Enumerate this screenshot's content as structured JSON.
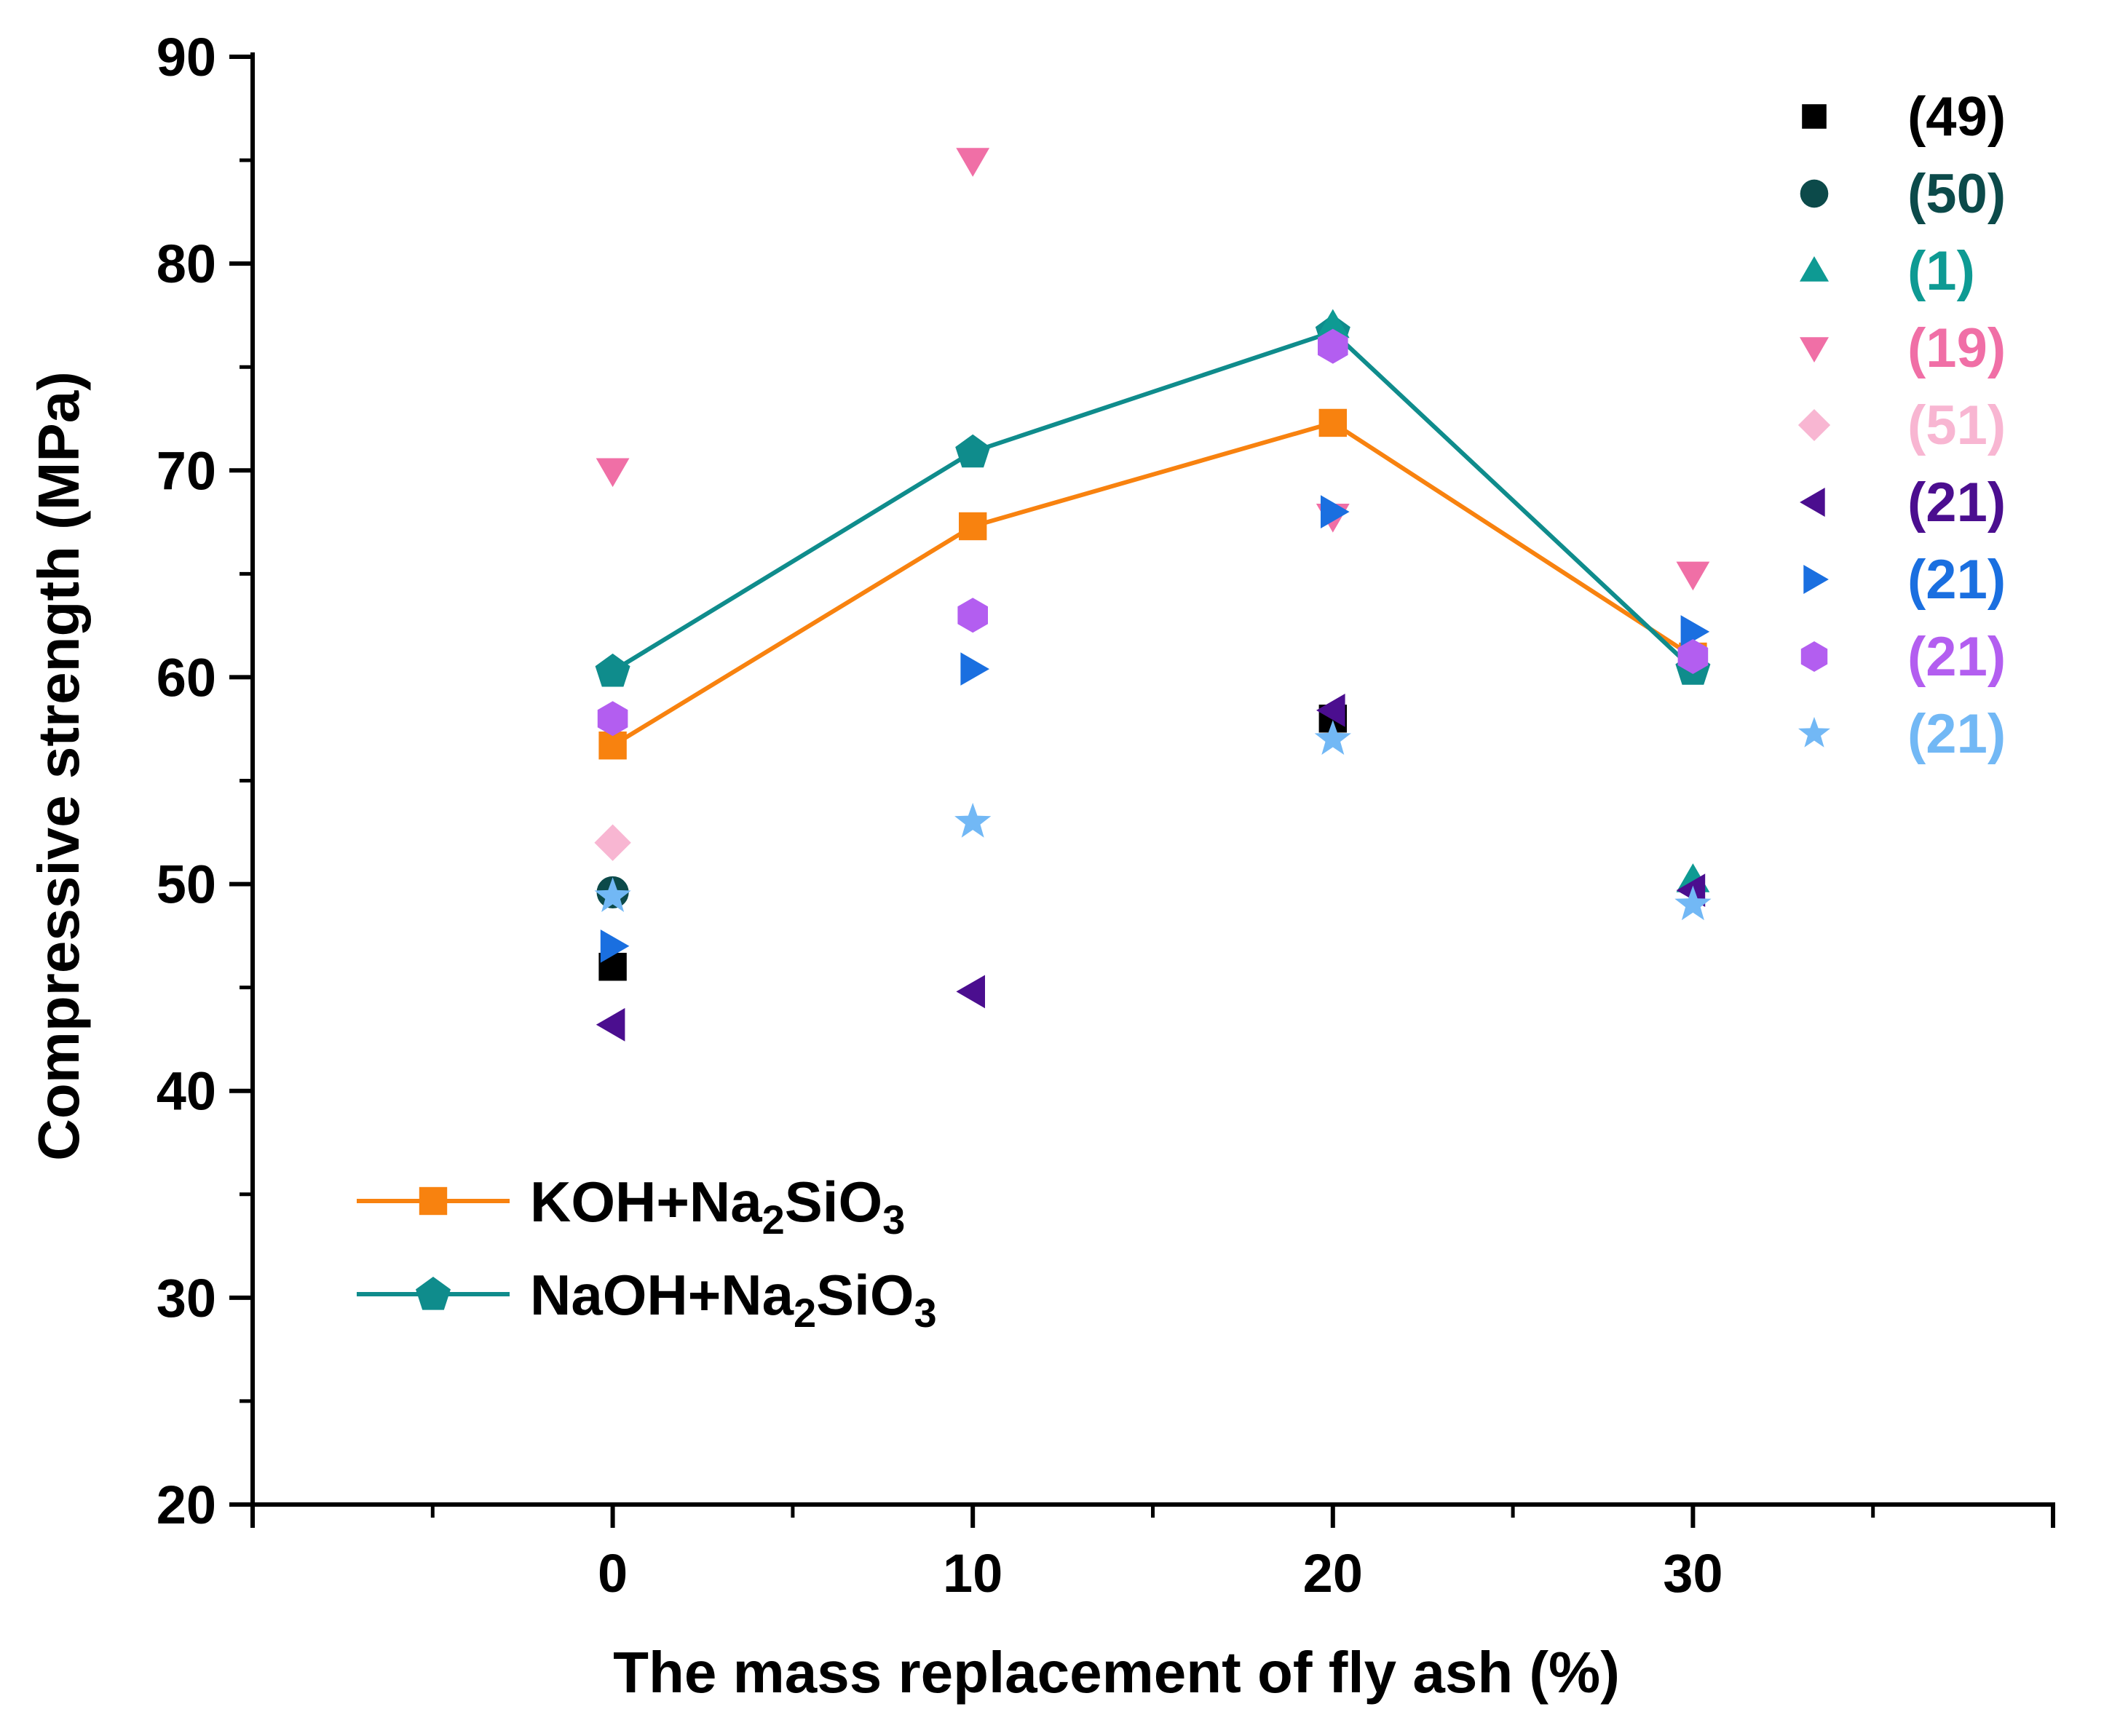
{
  "chart_data": {
    "type": "scatter",
    "xlabel": "The mass replacement of fly ash (%)",
    "ylabel": "Compressive strength (MPa)",
    "xlim": [
      -10,
      40
    ],
    "ylim": [
      20,
      90
    ],
    "xticks": [
      0,
      10,
      20,
      30
    ],
    "xtick_labels": [
      "0",
      "10",
      "20",
      "30"
    ],
    "yticks": [
      20,
      30,
      40,
      50,
      60,
      70,
      80,
      90
    ],
    "ytick_labels": [
      "20",
      "30",
      "40",
      "50",
      "60",
      "70",
      "80",
      "90"
    ],
    "grid": false,
    "scatter_series": [
      {
        "name": "(49)",
        "marker": "square",
        "color": "#000000",
        "points": [
          [
            0,
            46.0
          ],
          [
            20,
            58.0
          ]
        ]
      },
      {
        "name": "(50)",
        "marker": "circle",
        "color": "#0c4a4a",
        "points": [
          [
            0,
            49.6
          ]
        ]
      },
      {
        "name": "(1)",
        "marker": "triangle-up",
        "color": "#0e9a93",
        "points": [
          [
            20,
            77.0
          ],
          [
            30,
            50.2
          ]
        ]
      },
      {
        "name": "(19)",
        "marker": "triangle-down",
        "color": "#f06fa6",
        "points": [
          [
            0,
            70.0
          ],
          [
            10,
            85.0
          ],
          [
            20,
            67.8
          ],
          [
            30,
            65.0
          ]
        ]
      },
      {
        "name": "(51)",
        "marker": "diamond",
        "color": "#f8b6d2",
        "points": [
          [
            0,
            52.0
          ]
        ]
      },
      {
        "name": "(21)",
        "marker": "triangle-left",
        "color": "#4b0e8f",
        "points": [
          [
            0,
            43.2
          ],
          [
            10,
            44.8
          ],
          [
            20,
            58.4
          ],
          [
            30,
            49.7
          ]
        ]
      },
      {
        "name": "(21)",
        "marker": "triangle-right",
        "color": "#1a6fe0",
        "points": [
          [
            0,
            47.0
          ],
          [
            10,
            60.4
          ],
          [
            20,
            68.0
          ],
          [
            30,
            62.2
          ]
        ]
      },
      {
        "name": "(21)",
        "marker": "hexagon",
        "color": "#b35ef0",
        "points": [
          [
            0,
            58.0
          ],
          [
            10,
            63.0
          ],
          [
            20,
            76.0
          ],
          [
            30,
            61.0
          ]
        ]
      },
      {
        "name": "(21)",
        "marker": "star",
        "color": "#72b8f5",
        "points": [
          [
            0,
            49.4
          ],
          [
            10,
            53.0
          ],
          [
            20,
            57.0
          ],
          [
            30,
            49.0
          ]
        ]
      }
    ],
    "line_series": [
      {
        "name_main": "KOH+Na",
        "sub1": "2",
        "name_mid": "SiO",
        "sub2": "3",
        "marker": "square",
        "color": "#f8820f",
        "x": [
          0,
          10,
          20,
          30
        ],
        "y": [
          56.7,
          67.3,
          72.3,
          61.0
        ]
      },
      {
        "name_main": "NaOH+Na",
        "sub1": "2",
        "name_mid": "SiO",
        "sub2": "3",
        "marker": "pentagon",
        "color": "#0f8c8c",
        "x": [
          0,
          10,
          20,
          30
        ],
        "y": [
          60.3,
          70.9,
          76.7,
          60.4
        ]
      }
    ],
    "legend_position": "top-right (references), bottom-left (lines)"
  }
}
